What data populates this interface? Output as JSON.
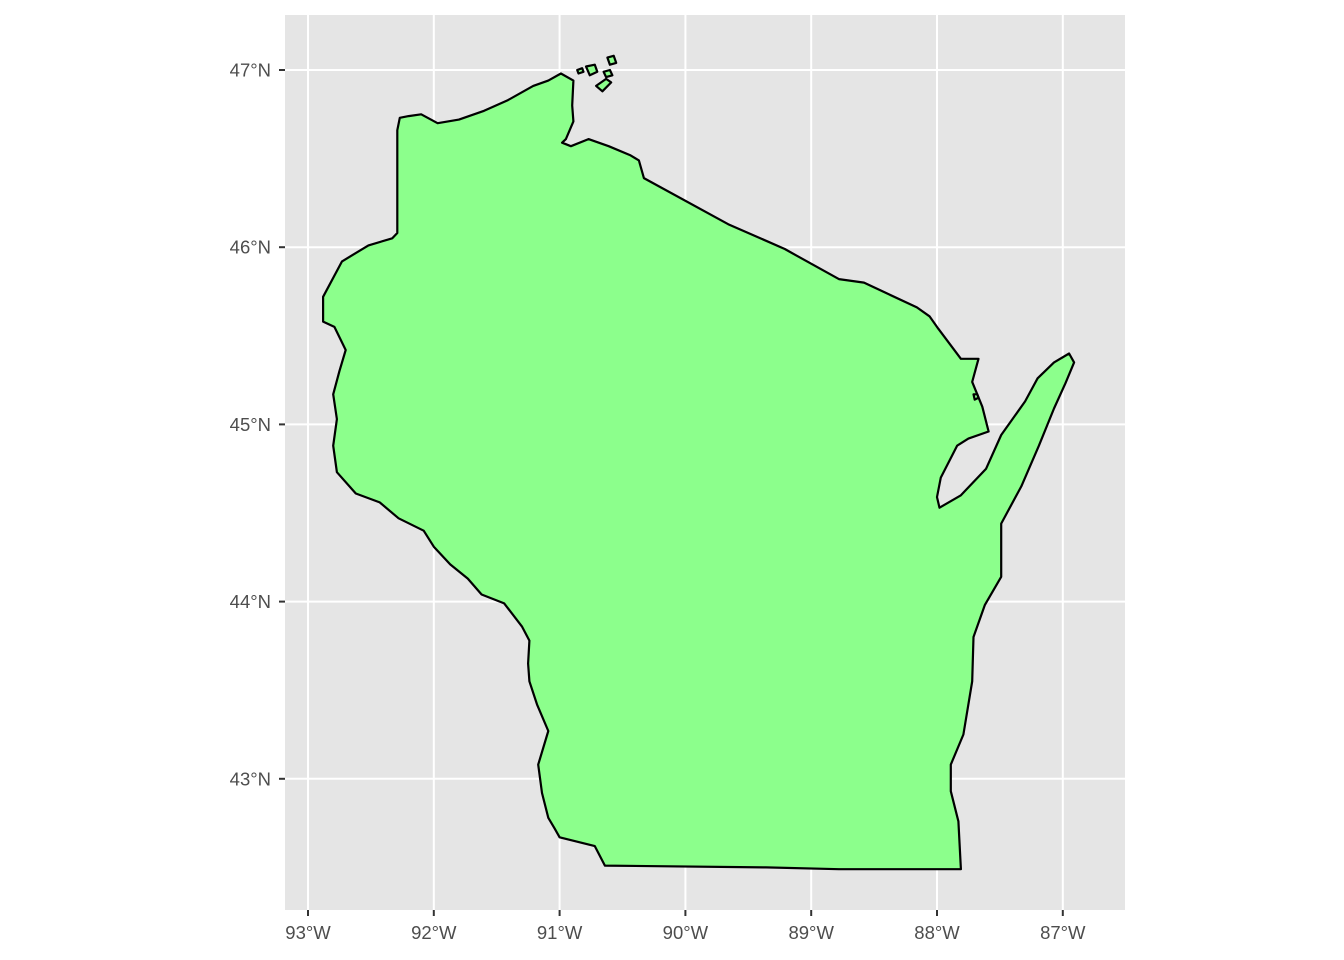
{
  "chart_data": {
    "type": "map",
    "title": "",
    "xlabel": "",
    "ylabel": "",
    "region": "Wisconsin",
    "fill_color": "#8cff8c",
    "outline_color": "#000000",
    "panel_background": "#e5e5e5",
    "grid": true,
    "legend": "none",
    "xlim": [
      -93.0,
      -86.5
    ],
    "ylim": [
      42.3,
      47.3
    ],
    "x_ticks": [
      {
        "value": -93,
        "label": "93°W"
      },
      {
        "value": -92,
        "label": "92°W"
      },
      {
        "value": -91,
        "label": "91°W"
      },
      {
        "value": -90,
        "label": "90°W"
      },
      {
        "value": -89,
        "label": "89°W"
      },
      {
        "value": -88,
        "label": "88°W"
      },
      {
        "value": -87,
        "label": "87°W"
      }
    ],
    "y_ticks": [
      {
        "value": 43,
        "label": "43°N"
      },
      {
        "value": 44,
        "label": "44°N"
      },
      {
        "value": 45,
        "label": "45°N"
      },
      {
        "value": 46,
        "label": "46°N"
      },
      {
        "value": 47,
        "label": "47°N"
      }
    ],
    "mainland_outline_lonlat": [
      [
        -92.29,
        46.66
      ],
      [
        -92.27,
        46.73
      ],
      [
        -92.2,
        46.74
      ],
      [
        -92.1,
        46.75
      ],
      [
        -91.97,
        46.7
      ],
      [
        -91.8,
        46.72
      ],
      [
        -91.6,
        46.77
      ],
      [
        -91.41,
        46.83
      ],
      [
        -91.21,
        46.91
      ],
      [
        -91.09,
        46.94
      ],
      [
        -90.99,
        46.98
      ],
      [
        -90.89,
        46.94
      ],
      [
        -90.9,
        46.8
      ],
      [
        -90.89,
        46.71
      ],
      [
        -90.95,
        46.61
      ],
      [
        -90.98,
        46.59
      ],
      [
        -90.91,
        46.57
      ],
      [
        -90.77,
        46.61
      ],
      [
        -90.61,
        46.57
      ],
      [
        -90.44,
        46.52
      ],
      [
        -90.37,
        46.49
      ],
      [
        -90.33,
        46.39
      ],
      [
        -89.66,
        46.13
      ],
      [
        -89.21,
        45.99
      ],
      [
        -89.11,
        45.95
      ],
      [
        -88.78,
        45.82
      ],
      [
        -88.58,
        45.8
      ],
      [
        -88.4,
        45.74
      ],
      [
        -88.16,
        45.66
      ],
      [
        -88.06,
        45.61
      ],
      [
        -87.99,
        45.54
      ],
      [
        -87.81,
        45.37
      ],
      [
        -87.67,
        45.37
      ],
      [
        -87.72,
        45.24
      ],
      [
        -87.64,
        45.1
      ],
      [
        -87.59,
        44.96
      ],
      [
        -87.75,
        44.92
      ],
      [
        -87.84,
        44.88
      ],
      [
        -87.97,
        44.7
      ],
      [
        -88.0,
        44.59
      ],
      [
        -87.98,
        44.53
      ],
      [
        -87.81,
        44.6
      ],
      [
        -87.61,
        44.75
      ],
      [
        -87.49,
        44.94
      ],
      [
        -87.3,
        45.13
      ],
      [
        -87.2,
        45.26
      ],
      [
        -87.07,
        45.35
      ],
      [
        -86.95,
        45.4
      ],
      [
        -86.91,
        45.35
      ],
      [
        -86.98,
        45.23
      ],
      [
        -87.07,
        45.09
      ],
      [
        -87.19,
        44.88
      ],
      [
        -87.33,
        44.65
      ],
      [
        -87.49,
        44.44
      ],
      [
        -87.49,
        44.14
      ],
      [
        -87.62,
        43.98
      ],
      [
        -87.71,
        43.8
      ],
      [
        -87.72,
        43.55
      ],
      [
        -87.79,
        43.25
      ],
      [
        -87.89,
        43.08
      ],
      [
        -87.89,
        42.93
      ],
      [
        -87.83,
        42.76
      ],
      [
        -87.81,
        42.49
      ],
      [
        -88.78,
        42.49
      ],
      [
        -89.36,
        42.5
      ],
      [
        -90.64,
        42.51
      ],
      [
        -90.72,
        42.62
      ],
      [
        -91.0,
        42.67
      ],
      [
        -91.04,
        42.72
      ],
      [
        -91.09,
        42.78
      ],
      [
        -91.14,
        42.92
      ],
      [
        -91.17,
        43.08
      ],
      [
        -91.09,
        43.27
      ],
      [
        -91.18,
        43.42
      ],
      [
        -91.24,
        43.55
      ],
      [
        -91.25,
        43.65
      ],
      [
        -91.24,
        43.78
      ],
      [
        -91.3,
        43.86
      ],
      [
        -91.44,
        43.99
      ],
      [
        -91.62,
        44.04
      ],
      [
        -91.73,
        44.13
      ],
      [
        -91.87,
        44.21
      ],
      [
        -92.0,
        44.31
      ],
      [
        -92.08,
        44.4
      ],
      [
        -92.28,
        44.47
      ],
      [
        -92.43,
        44.56
      ],
      [
        -92.62,
        44.61
      ],
      [
        -92.77,
        44.73
      ],
      [
        -92.8,
        44.88
      ],
      [
        -92.77,
        45.03
      ],
      [
        -92.8,
        45.17
      ],
      [
        -92.75,
        45.3
      ],
      [
        -92.7,
        45.42
      ],
      [
        -92.79,
        45.55
      ],
      [
        -92.88,
        45.58
      ],
      [
        -92.88,
        45.72
      ],
      [
        -92.73,
        45.92
      ],
      [
        -92.52,
        46.01
      ],
      [
        -92.33,
        46.05
      ],
      [
        -92.29,
        46.08
      ],
      [
        -92.29,
        46.66
      ]
    ],
    "island_outlines_lonlat": [
      [
        [
          -90.79,
          47.02
        ],
        [
          -90.72,
          47.03
        ],
        [
          -90.7,
          46.99
        ],
        [
          -90.76,
          46.97
        ],
        [
          -90.79,
          47.02
        ]
      ],
      [
        [
          -90.62,
          47.07
        ],
        [
          -90.57,
          47.08
        ],
        [
          -90.55,
          47.04
        ],
        [
          -90.6,
          47.03
        ],
        [
          -90.62,
          47.07
        ]
      ],
      [
        [
          -90.71,
          46.91
        ],
        [
          -90.63,
          46.95
        ],
        [
          -90.59,
          46.93
        ],
        [
          -90.66,
          46.88
        ],
        [
          -90.71,
          46.91
        ]
      ],
      [
        [
          -90.65,
          46.99
        ],
        [
          -90.6,
          47.0
        ],
        [
          -90.58,
          46.97
        ],
        [
          -90.63,
          46.96
        ],
        [
          -90.65,
          46.99
        ]
      ],
      [
        [
          -90.86,
          47.0
        ],
        [
          -90.82,
          47.01
        ],
        [
          -90.81,
          46.99
        ],
        [
          -90.85,
          46.98
        ],
        [
          -90.86,
          47.0
        ]
      ],
      [
        [
          -87.71,
          45.17
        ],
        [
          -87.68,
          45.17
        ],
        [
          -87.67,
          45.15
        ],
        [
          -87.7,
          45.14
        ],
        [
          -87.71,
          45.17
        ]
      ]
    ]
  }
}
